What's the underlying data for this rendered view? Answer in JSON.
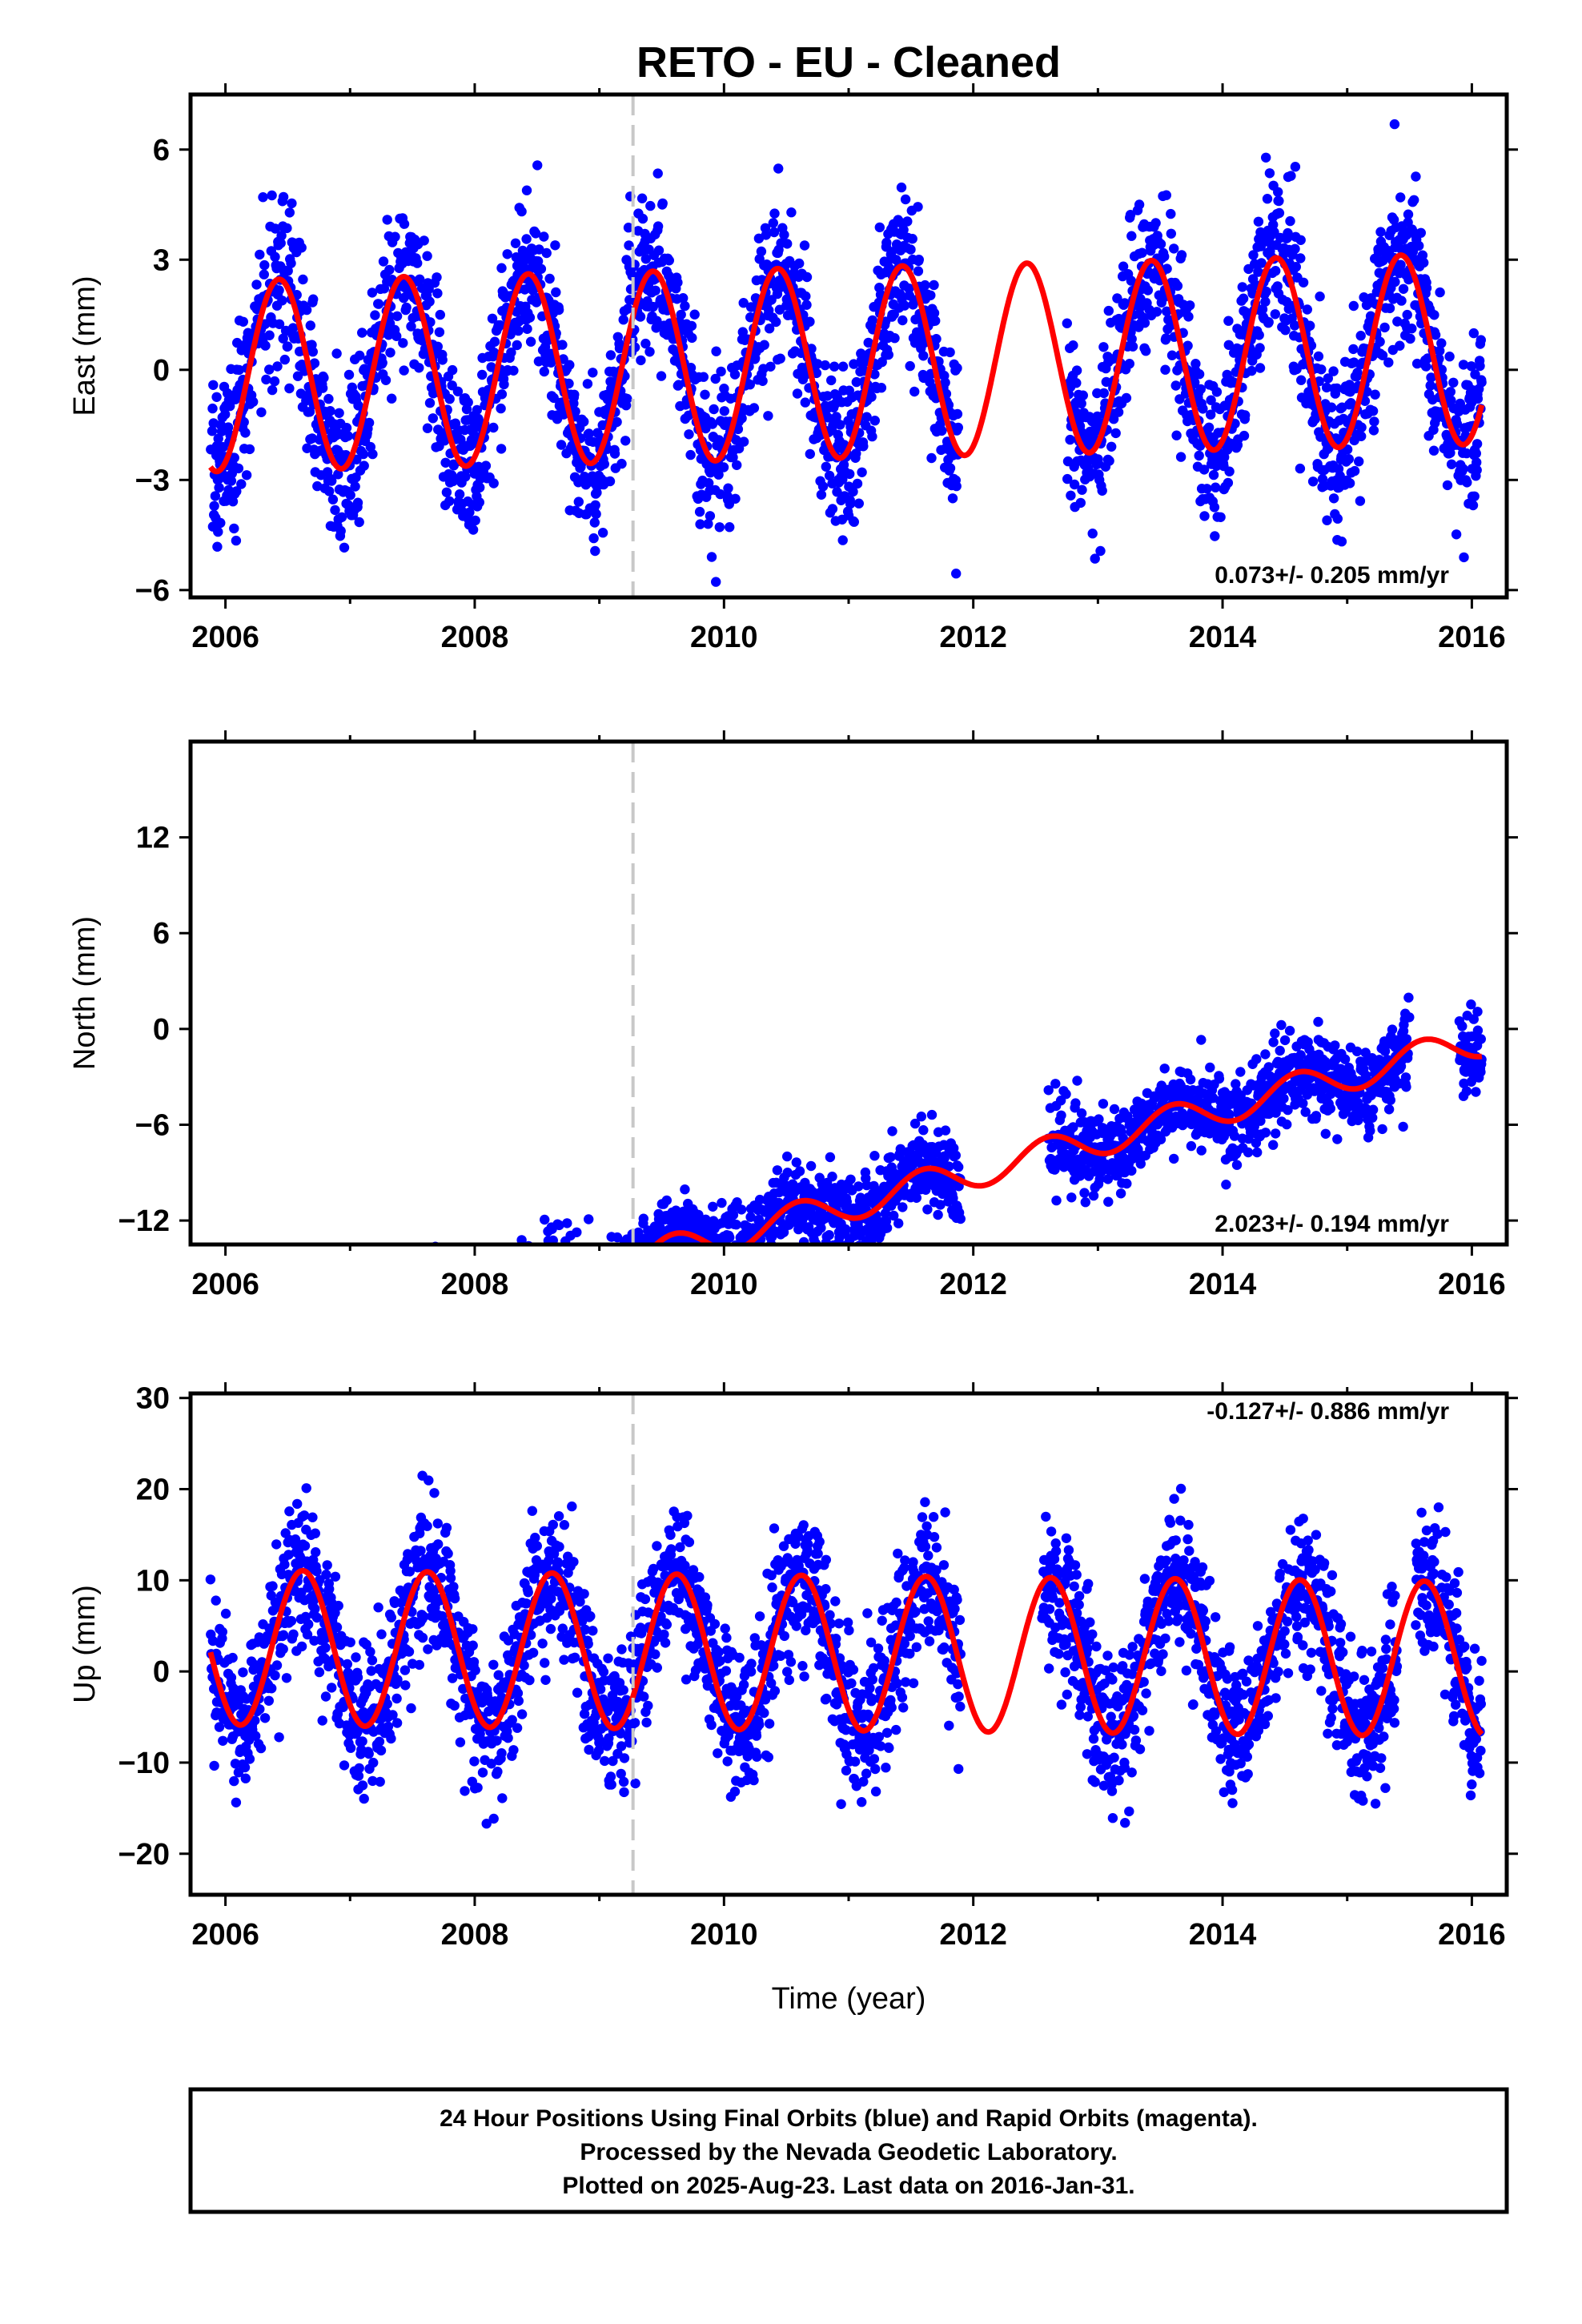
{
  "title": "RETO  - EU - Cleaned",
  "xlabel": "Time (year)",
  "footer": {
    "line1": "24 Hour Positions Using Final Orbits (blue) and Rapid Orbits (magenta).",
    "line2": "Processed by the Nevada Geodetic Laboratory.",
    "line3": "Plotted on 2025-Aug-23. Last data on 2016-Jan-31."
  },
  "colors": {
    "points": "#0000ff",
    "model": "#ff0000",
    "break_line": "#c8c8c8"
  },
  "chart_data": [
    {
      "type": "scatter",
      "ylabel": "East (mm)",
      "rate": "0.073+/- 0.205 mm/yr",
      "xlim": [
        2005.72,
        2016.28
      ],
      "ylim": [
        -6.2,
        7.5
      ],
      "xticks": [
        2006,
        2008,
        2010,
        2012,
        2014,
        2016
      ],
      "yticks": [
        -6,
        -3,
        0,
        3,
        6
      ],
      "break_year": 2009.27,
      "data_start": 2005.88,
      "data_end": 2016.08,
      "series": {
        "trend_mm_per_yr": 0.073,
        "offset_mm": 0.2,
        "annual_amplitude_mm": 2.6,
        "peak_year_fraction": 0.43,
        "scatter_sd_mm": 1.1,
        "gaps": [
          [
            2011.88,
            2012.75
          ]
        ]
      }
    },
    {
      "type": "scatter",
      "ylabel": "North (mm)",
      "rate": "2.023+/- 0.194 mm/yr",
      "xlim": [
        2005.72,
        2016.28
      ],
      "ylim": [
        -13.5,
        18.0
      ],
      "xticks": [
        2006,
        2008,
        2010,
        2012,
        2014,
        2016
      ],
      "yticks": [
        -12,
        -6,
        0,
        6,
        12
      ],
      "break_year": 2009.27,
      "data_start": 2005.88,
      "data_end": 2016.08,
      "series": {
        "trend_mm_per_yr": 2.023,
        "offset_mm": -11.0,
        "annual_amplitude_mm": 1.0,
        "peak_year_fraction": 0.6,
        "scatter_sd_mm": 1.3,
        "gaps": [
          [
            2011.9,
            2012.6
          ],
          [
            2015.5,
            2015.9
          ]
        ]
      }
    },
    {
      "type": "scatter",
      "ylabel": "Up (mm)",
      "rate": "-0.127+/- 0.886 mm/yr",
      "xlim": [
        2005.72,
        2016.28
      ],
      "ylim": [
        -24.5,
        30.5
      ],
      "xticks": [
        2006,
        2008,
        2010,
        2012,
        2014,
        2016
      ],
      "yticks": [
        -20,
        -10,
        0,
        10,
        20,
        30
      ],
      "break_year": 2009.27,
      "data_start": 2005.88,
      "data_end": 2016.08,
      "series": {
        "trend_mm_per_yr": -0.127,
        "offset_mm": 2.0,
        "annual_amplitude_mm": 8.5,
        "peak_year_fraction": 0.62,
        "scatter_sd_mm": 4.0,
        "gaps": [
          [
            2011.9,
            2012.55
          ],
          [
            2015.4,
            2015.55
          ]
        ]
      }
    }
  ]
}
